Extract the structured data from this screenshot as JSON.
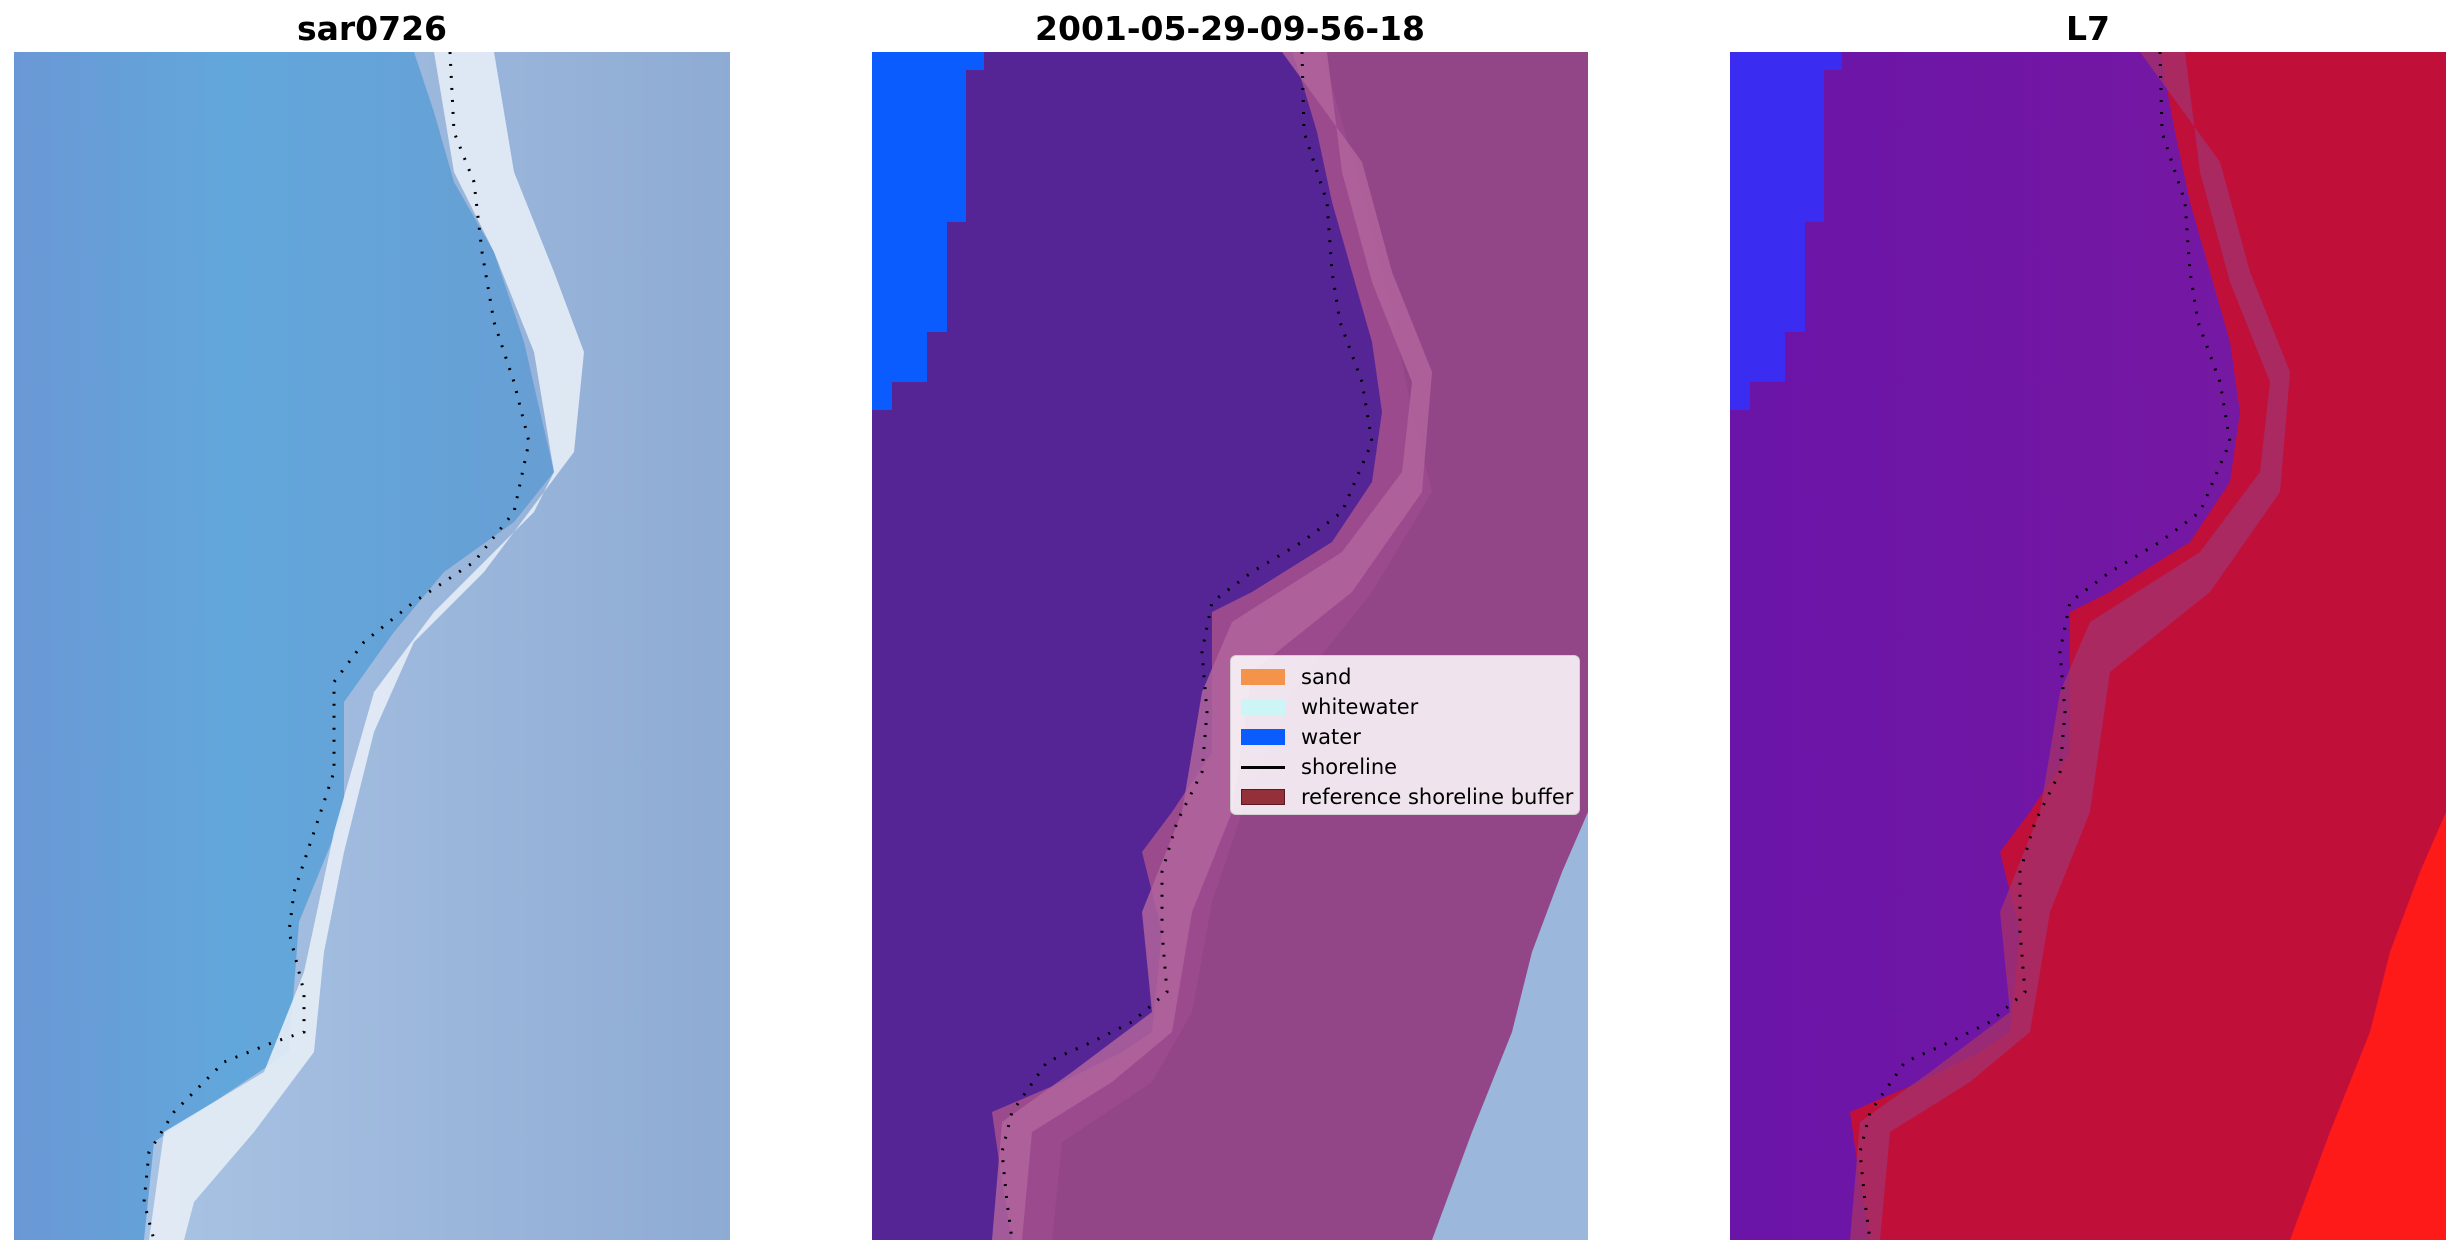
{
  "panels": [
    {
      "title": "sar0726"
    },
    {
      "title": "2001-05-29-09-56-18"
    },
    {
      "title": "L7"
    }
  ],
  "colors": {
    "sand": "#f4934a",
    "whitewater": "#ccf5f5",
    "water": "#0a5cff",
    "shoreline": "#000000",
    "buffer": "#93303a"
  },
  "legend": {
    "items": [
      {
        "label": "sand",
        "icon": "swatch",
        "color": "#f4934a"
      },
      {
        "label": "whitewater",
        "icon": "swatch",
        "color": "#ccf5f5"
      },
      {
        "label": "water",
        "icon": "swatch",
        "color": "#0a5cff"
      },
      {
        "label": "shoreline",
        "icon": "line",
        "color": "#000000"
      },
      {
        "label": "reference shoreline buffer",
        "icon": "swatch",
        "color": "#93303a"
      }
    ]
  }
}
